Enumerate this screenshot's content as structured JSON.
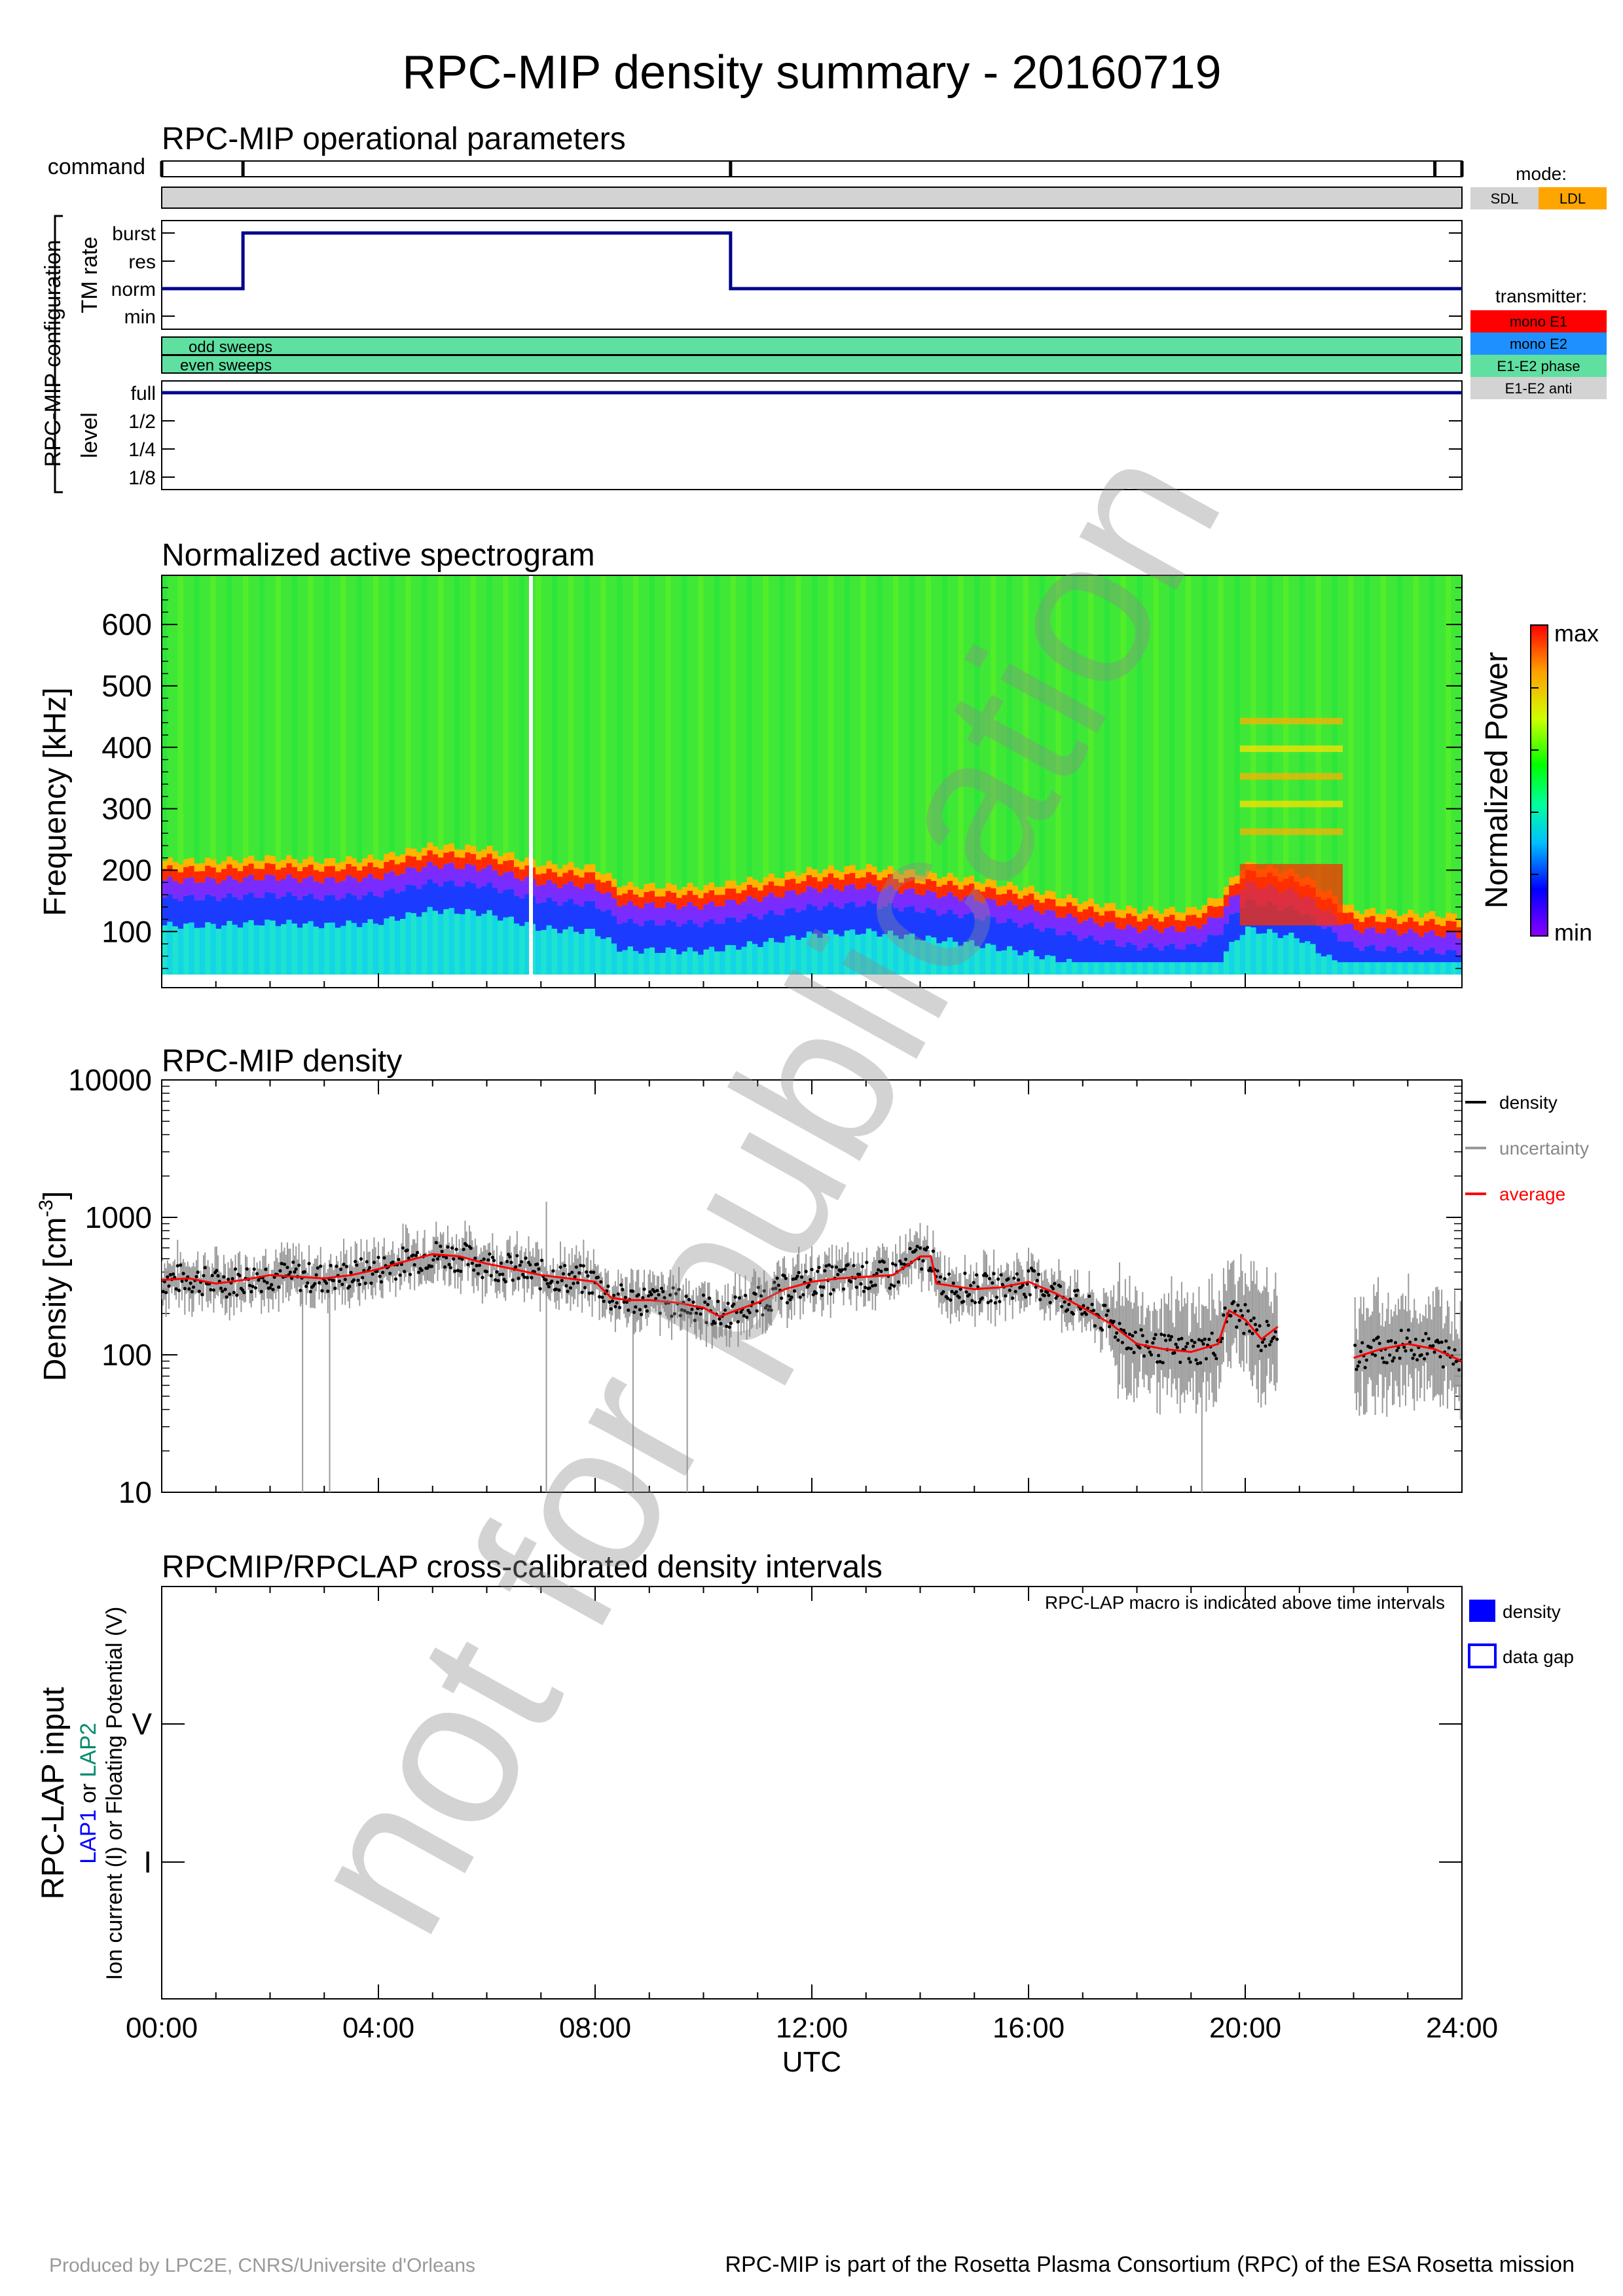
{
  "title": "RPC-MIP density summary - 20160719",
  "operational": {
    "title": "RPC-MIP operational parameters",
    "command_label": "command",
    "config_label": "RPC-MIP configuration",
    "tm_rate_label": "TM rate",
    "level_label": "level",
    "tm_levels": [
      "burst",
      "res",
      "norm",
      "min"
    ],
    "power_levels": [
      "full",
      "1/2",
      "1/4",
      "1/8"
    ],
    "odd_sweeps": "odd sweeps",
    "even_sweeps": "even sweeps",
    "mode_title": "mode:",
    "modes": [
      {
        "label": "SDL",
        "color": "#d3d3d3"
      },
      {
        "label": "LDL",
        "color": "#ffa500"
      }
    ],
    "transmitter_title": "transmitter:",
    "transmitters": [
      {
        "label": "mono E1",
        "color": "#ff0000"
      },
      {
        "label": "mono E2",
        "color": "#1e90ff"
      },
      {
        "label": "E1-E2 phase",
        "color": "#5fe0a0"
      },
      {
        "label": "E1-E2 anti",
        "color": "#d3d3d3"
      }
    ],
    "command_times_h": [
      0,
      1.5,
      10.5,
      23.5,
      24
    ],
    "tm_rate_steps": [
      {
        "from_h": 0,
        "to_h": 1.5,
        "level": "norm"
      },
      {
        "from_h": 1.5,
        "to_h": 10.5,
        "level": "burst"
      },
      {
        "from_h": 10.5,
        "to_h": 24,
        "level": "norm"
      }
    ],
    "power_level": "full"
  },
  "spectrogram": {
    "title": "Normalized active spectrogram",
    "ylabel": "Frequency [kHz]",
    "yticks": [
      100,
      200,
      300,
      400,
      500,
      600
    ],
    "ylim": [
      30,
      680
    ],
    "colorbar_label": "Normalized Power",
    "colorbar_max": "max",
    "colorbar_min": "min",
    "plasma_line_khz": [
      [
        0,
        190
      ],
      [
        1,
        190
      ],
      [
        2,
        195
      ],
      [
        3,
        190
      ],
      [
        4,
        195
      ],
      [
        5,
        215
      ],
      [
        6,
        210
      ],
      [
        7,
        185
      ],
      [
        8,
        180
      ],
      [
        8.5,
        150
      ],
      [
        10,
        148
      ],
      [
        11,
        160
      ],
      [
        12,
        175
      ],
      [
        13,
        180
      ],
      [
        14,
        170
      ],
      [
        15,
        160
      ],
      [
        16,
        145
      ],
      [
        17,
        125
      ],
      [
        18,
        110
      ],
      [
        19,
        110
      ],
      [
        19.5,
        130
      ],
      [
        20,
        185
      ],
      [
        21,
        170
      ],
      [
        22,
        110
      ],
      [
        23,
        105
      ],
      [
        24,
        100
      ]
    ]
  },
  "chart_data": {
    "type": "scatter",
    "title": "RPC-MIP density",
    "xlabel": "UTC",
    "ylabel": "Density [cm",
    "ylabel_sup": "-3",
    "ylabel_end": "]",
    "yscale": "log",
    "ylim": [
      10,
      10000
    ],
    "xlim_h": [
      0,
      24
    ],
    "xticks": [
      "00:00",
      "04:00",
      "08:00",
      "12:00",
      "16:00",
      "20:00",
      "24:00"
    ],
    "yticks": [
      "10",
      "100",
      "1000",
      "10000"
    ],
    "legend": [
      {
        "label": "density",
        "color": "#000000"
      },
      {
        "label": "uncertainty",
        "color": "#999999"
      },
      {
        "label": "average",
        "color": "#ff0000"
      }
    ],
    "legend_position": "right",
    "series": [
      {
        "name": "average",
        "x_h": [
          0,
          0.5,
          1,
          1.5,
          2,
          2.5,
          3,
          3.5,
          4,
          4.5,
          5,
          5.5,
          6,
          6.5,
          7,
          7.5,
          8,
          8.3,
          8.6,
          9,
          9.5,
          10,
          10.3,
          10.6,
          11,
          11.5,
          12,
          12.5,
          13,
          13.5,
          14,
          14.2,
          14.3,
          15,
          15.5,
          16,
          16.5,
          17,
          17.5,
          18,
          18.5,
          19,
          19.5,
          19.7,
          20,
          20.3,
          20.6,
          21,
          21.5,
          22,
          22.5,
          23,
          23.5,
          24
        ],
        "y": [
          350,
          360,
          330,
          350,
          380,
          370,
          360,
          380,
          420,
          480,
          540,
          520,
          460,
          420,
          380,
          360,
          340,
          260,
          250,
          250,
          240,
          220,
          190,
          210,
          240,
          300,
          340,
          360,
          370,
          380,
          520,
          520,
          330,
          300,
          310,
          340,
          280,
          220,
          170,
          120,
          110,
          105,
          120,
          210,
          180,
          130,
          160,
          null,
          null,
          95,
          110,
          120,
          110,
          90
        ]
      }
    ]
  },
  "lap": {
    "title": "RPCMIP/RPCLAP cross-calibrated density intervals",
    "note": "RPC-LAP macro is indicated above time intervals",
    "ylabel_main": "RPC-LAP input",
    "ylabel_lap1": "LAP1",
    "ylabel_or": " or ",
    "ylabel_lap2": "LAP2",
    "ylabel_sub": "Ion current (I) or Floating Potential (V)",
    "ytick_v": "V",
    "ytick_i": "I",
    "legend": [
      {
        "label": "density",
        "style": "filled",
        "color": "#0000ff"
      },
      {
        "label": "data gap",
        "style": "outline",
        "color": "#0000ff"
      }
    ]
  },
  "watermark": "not for publication",
  "footer": {
    "left": "Produced by LPC2E, CNRS/Universite d'Orleans",
    "right": "RPC-MIP is part of the Rosetta Plasma Consortium (RPC) of the ESA Rosetta mission"
  }
}
